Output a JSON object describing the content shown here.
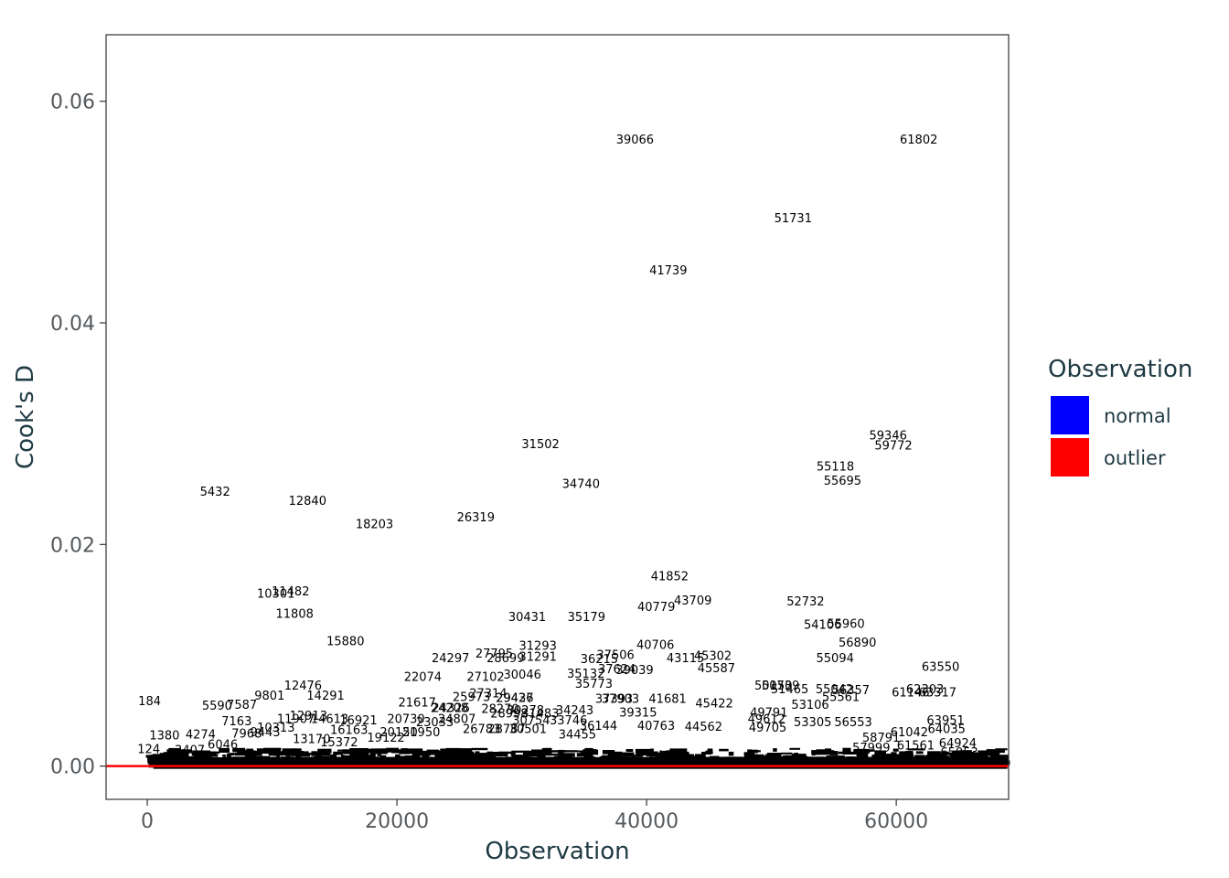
{
  "chart_data": {
    "type": "scatter",
    "title": "",
    "xlabel": "Observation",
    "ylabel": "Cook's D",
    "xlim": [
      -3300,
      69000
    ],
    "ylim": [
      -0.003,
      0.066
    ],
    "x_ticks": [
      0,
      20000,
      40000,
      60000
    ],
    "x_tick_labels": [
      "0",
      "20000",
      "40000",
      "60000"
    ],
    "y_ticks": [
      0.0,
      0.02,
      0.04,
      0.06
    ],
    "y_tick_labels": [
      "0.00",
      "0.02",
      "0.04",
      "0.06"
    ],
    "grid": false,
    "threshold_line": {
      "y": 0.0,
      "color": "#ff0000"
    },
    "legend": {
      "title": "Observation",
      "placement": "right",
      "entries": [
        {
          "label": "normal",
          "color": "#0000ff"
        },
        {
          "label": "outlier",
          "color": "#ff0000"
        }
      ]
    },
    "labeled_points": [
      {
        "x": 39066,
        "y": 0.0566,
        "label": "39066"
      },
      {
        "x": 61802,
        "y": 0.0566,
        "label": "61802"
      },
      {
        "x": 51731,
        "y": 0.0495,
        "label": "51731"
      },
      {
        "x": 41739,
        "y": 0.0448,
        "label": "41739"
      },
      {
        "x": 59346,
        "y": 0.0299,
        "label": "59346"
      },
      {
        "x": 59772,
        "y": 0.029,
        "label": "59772"
      },
      {
        "x": 31502,
        "y": 0.0291,
        "label": "31502"
      },
      {
        "x": 55118,
        "y": 0.0271,
        "label": "55118"
      },
      {
        "x": 55695,
        "y": 0.0258,
        "label": "55695"
      },
      {
        "x": 34740,
        "y": 0.0255,
        "label": "34740"
      },
      {
        "x": 5432,
        "y": 0.0248,
        "label": "5432"
      },
      {
        "x": 12840,
        "y": 0.024,
        "label": "12840"
      },
      {
        "x": 26319,
        "y": 0.0225,
        "label": "26319"
      },
      {
        "x": 18203,
        "y": 0.0219,
        "label": "18203"
      },
      {
        "x": 41852,
        "y": 0.0172,
        "label": "41852"
      },
      {
        "x": 10301,
        "y": 0.0156,
        "label": "10301"
      },
      {
        "x": 11482,
        "y": 0.0158,
        "label": "11482"
      },
      {
        "x": 52732,
        "y": 0.0149,
        "label": "52732"
      },
      {
        "x": 43709,
        "y": 0.015,
        "label": "43709"
      },
      {
        "x": 40779,
        "y": 0.0144,
        "label": "40779"
      },
      {
        "x": 11808,
        "y": 0.0138,
        "label": "11808"
      },
      {
        "x": 30431,
        "y": 0.0135,
        "label": "30431"
      },
      {
        "x": 35179,
        "y": 0.0135,
        "label": "35179"
      },
      {
        "x": 54106,
        "y": 0.0128,
        "label": "54106"
      },
      {
        "x": 55960,
        "y": 0.0129,
        "label": "55960"
      },
      {
        "x": 15880,
        "y": 0.0113,
        "label": "15880"
      },
      {
        "x": 56890,
        "y": 0.0112,
        "label": "56890"
      },
      {
        "x": 40706,
        "y": 0.011,
        "label": "40706"
      },
      {
        "x": 31293,
        "y": 0.0109,
        "label": "31293"
      },
      {
        "x": 27795,
        "y": 0.0102,
        "label": "27795"
      },
      {
        "x": 37506,
        "y": 0.0101,
        "label": "37506"
      },
      {
        "x": 45302,
        "y": 0.01,
        "label": "45302"
      },
      {
        "x": 24297,
        "y": 0.0098,
        "label": "24297"
      },
      {
        "x": 28699,
        "y": 0.0098,
        "label": "28699"
      },
      {
        "x": 31291,
        "y": 0.0099,
        "label": "31291"
      },
      {
        "x": 36215,
        "y": 0.0097,
        "label": "36215"
      },
      {
        "x": 43115,
        "y": 0.0098,
        "label": "43115"
      },
      {
        "x": 55094,
        "y": 0.0098,
        "label": "55094"
      },
      {
        "x": 63550,
        "y": 0.009,
        "label": "63550"
      },
      {
        "x": 45587,
        "y": 0.0089,
        "label": "45587"
      },
      {
        "x": 37624,
        "y": 0.0088,
        "label": "37624"
      },
      {
        "x": 39039,
        "y": 0.0087,
        "label": "39039"
      },
      {
        "x": 35132,
        "y": 0.0084,
        "label": "35132"
      },
      {
        "x": 30046,
        "y": 0.0083,
        "label": "30046"
      },
      {
        "x": 27102,
        "y": 0.0081,
        "label": "27102"
      },
      {
        "x": 22074,
        "y": 0.0081,
        "label": "22074"
      },
      {
        "x": 35773,
        "y": 0.0075,
        "label": "35773"
      },
      {
        "x": 12476,
        "y": 0.0073,
        "label": "12476"
      },
      {
        "x": 50150,
        "y": 0.0073,
        "label": "50150"
      },
      {
        "x": 50739,
        "y": 0.0073,
        "label": "50739"
      },
      {
        "x": 51465,
        "y": 0.007,
        "label": "51465"
      },
      {
        "x": 55042,
        "y": 0.007,
        "label": "55042"
      },
      {
        "x": 56357,
        "y": 0.0069,
        "label": "56357"
      },
      {
        "x": 62303,
        "y": 0.007,
        "label": "62303"
      },
      {
        "x": 61146,
        "y": 0.0067,
        "label": "61146"
      },
      {
        "x": 63317,
        "y": 0.0067,
        "label": "63317"
      },
      {
        "x": 27314,
        "y": 0.0066,
        "label": "27314"
      },
      {
        "x": 9801,
        "y": 0.0064,
        "label": "9801"
      },
      {
        "x": 14291,
        "y": 0.0064,
        "label": "14291"
      },
      {
        "x": 25973,
        "y": 0.0063,
        "label": "25973"
      },
      {
        "x": 29436,
        "y": 0.0062,
        "label": "29436"
      },
      {
        "x": 29427,
        "y": 0.0062,
        "label": "29427"
      },
      {
        "x": 55561,
        "y": 0.0063,
        "label": "55561"
      },
      {
        "x": 37393,
        "y": 0.0061,
        "label": "37393"
      },
      {
        "x": 37903,
        "y": 0.0061,
        "label": "37903"
      },
      {
        "x": 41681,
        "y": 0.0061,
        "label": "41681"
      },
      {
        "x": 184,
        "y": 0.0059,
        "label": "184"
      },
      {
        "x": 7587,
        "y": 0.0056,
        "label": "7587"
      },
      {
        "x": 5590,
        "y": 0.0055,
        "label": "5590"
      },
      {
        "x": 21617,
        "y": 0.0058,
        "label": "21617"
      },
      {
        "x": 45422,
        "y": 0.0057,
        "label": "45422"
      },
      {
        "x": 53106,
        "y": 0.0056,
        "label": "53106"
      },
      {
        "x": 24208,
        "y": 0.0053,
        "label": "24208"
      },
      {
        "x": 24326,
        "y": 0.0053,
        "label": "24326"
      },
      {
        "x": 28270,
        "y": 0.0052,
        "label": "28270"
      },
      {
        "x": 30278,
        "y": 0.0051,
        "label": "30278"
      },
      {
        "x": 34243,
        "y": 0.0051,
        "label": "34243"
      },
      {
        "x": 39315,
        "y": 0.0049,
        "label": "39315"
      },
      {
        "x": 49791,
        "y": 0.0049,
        "label": "49791"
      },
      {
        "x": 28998,
        "y": 0.0048,
        "label": "28998"
      },
      {
        "x": 31483,
        "y": 0.0048,
        "label": "31483"
      },
      {
        "x": 12913,
        "y": 0.0046,
        "label": "12913"
      },
      {
        "x": 11907,
        "y": 0.0043,
        "label": "11907"
      },
      {
        "x": 14613,
        "y": 0.0043,
        "label": "14613"
      },
      {
        "x": 16921,
        "y": 0.0042,
        "label": "16921"
      },
      {
        "x": 7163,
        "y": 0.0041,
        "label": "7163"
      },
      {
        "x": 20730,
        "y": 0.0043,
        "label": "20730"
      },
      {
        "x": 23033,
        "y": 0.004,
        "label": "23033"
      },
      {
        "x": 24807,
        "y": 0.0043,
        "label": "24807"
      },
      {
        "x": 30754,
        "y": 0.0042,
        "label": "30754"
      },
      {
        "x": 33746,
        "y": 0.0042,
        "label": "33746"
      },
      {
        "x": 49612,
        "y": 0.0043,
        "label": "49612"
      },
      {
        "x": 53305,
        "y": 0.004,
        "label": "53305"
      },
      {
        "x": 56553,
        "y": 0.004,
        "label": "56553"
      },
      {
        "x": 63951,
        "y": 0.0042,
        "label": "63951"
      },
      {
        "x": 10313,
        "y": 0.0035,
        "label": "10313"
      },
      {
        "x": 16163,
        "y": 0.0033,
        "label": "16163"
      },
      {
        "x": 26783,
        "y": 0.0034,
        "label": "26783"
      },
      {
        "x": 28787,
        "y": 0.0034,
        "label": "28787"
      },
      {
        "x": 30501,
        "y": 0.0034,
        "label": "30501"
      },
      {
        "x": 36144,
        "y": 0.0037,
        "label": "36144"
      },
      {
        "x": 40763,
        "y": 0.0037,
        "label": "40763"
      },
      {
        "x": 44562,
        "y": 0.0036,
        "label": "44562"
      },
      {
        "x": 49705,
        "y": 0.0035,
        "label": "49705"
      },
      {
        "x": 64035,
        "y": 0.0034,
        "label": "64035"
      },
      {
        "x": 1380,
        "y": 0.0028,
        "label": "1380"
      },
      {
        "x": 4274,
        "y": 0.0029,
        "label": "4274"
      },
      {
        "x": 7968,
        "y": 0.003,
        "label": "7968"
      },
      {
        "x": 9443,
        "y": 0.0031,
        "label": "9443"
      },
      {
        "x": 20150,
        "y": 0.0031,
        "label": "20150"
      },
      {
        "x": 21950,
        "y": 0.0031,
        "label": "21950"
      },
      {
        "x": 34455,
        "y": 0.0029,
        "label": "34455"
      },
      {
        "x": 61042,
        "y": 0.0031,
        "label": "61042"
      },
      {
        "x": 6046,
        "y": 0.002,
        "label": "6046"
      },
      {
        "x": 13170,
        "y": 0.0025,
        "label": "13170"
      },
      {
        "x": 15372,
        "y": 0.0022,
        "label": "15372"
      },
      {
        "x": 19122,
        "y": 0.0026,
        "label": "19122"
      },
      {
        "x": 58791,
        "y": 0.0026,
        "label": "58791"
      },
      {
        "x": 64924,
        "y": 0.0021,
        "label": "64924"
      },
      {
        "x": 124,
        "y": 0.0016,
        "label": "124"
      },
      {
        "x": 3407,
        "y": 0.0015,
        "label": "3407"
      },
      {
        "x": 57999,
        "y": 0.0017,
        "label": "57999"
      },
      {
        "x": 61561,
        "y": 0.0019,
        "label": "61561"
      },
      {
        "x": 65053,
        "y": 0.0013,
        "label": "65053"
      }
    ]
  }
}
